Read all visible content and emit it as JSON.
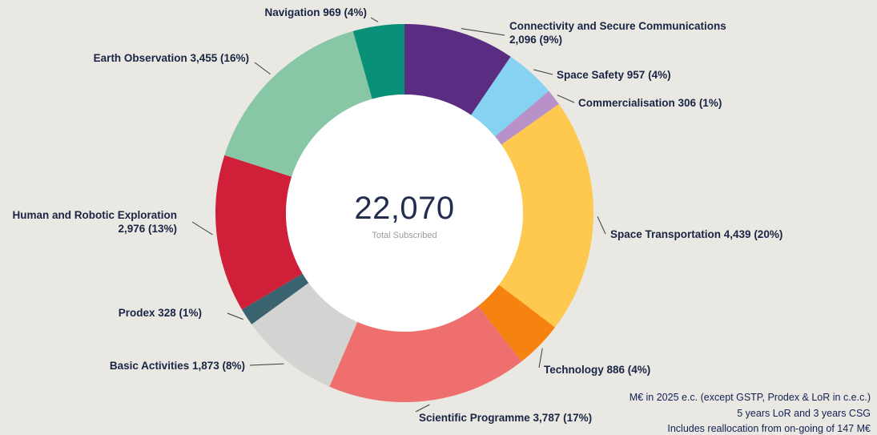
{
  "page": {
    "background": "#e9e8e2"
  },
  "chart_data": {
    "type": "pie",
    "subtype": "donut",
    "center_value": "22,070",
    "center_label": "Total Subscribed",
    "total": 22070,
    "legend_position": "outside-labels",
    "start_angle_deg": 0,
    "direction": "clockwise",
    "segments": [
      {
        "name": "Connectivity and Secure Communications",
        "value": 2096,
        "percent": 9,
        "color": "#5a2d82",
        "label_lines": [
          "Connectivity and Secure Communications",
          "2,096 (9%)"
        ]
      },
      {
        "name": "Space Safety",
        "value": 957,
        "percent": 4,
        "color": "#85d2f2",
        "label_lines": [
          "Space Safety 957 (4%)"
        ]
      },
      {
        "name": "Commercialisation",
        "value": 306,
        "percent": 1,
        "color": "#b791c8",
        "label_lines": [
          "Commercialisation 306 (1%)"
        ]
      },
      {
        "name": "Space Transportation",
        "value": 4439,
        "percent": 20,
        "color": "#ffc84f",
        "label_lines": [
          "Space Transportation 4,439 (20%)"
        ]
      },
      {
        "name": "Technology",
        "value": 886,
        "percent": 4,
        "color": "#f6830f",
        "label_lines": [
          "Technology 886 (4%)"
        ]
      },
      {
        "name": "Scientific Programme",
        "value": 3787,
        "percent": 17,
        "color": "#ee6f6e",
        "label_lines": [
          "Scientific Programme 3,787 (17%)"
        ]
      },
      {
        "name": "Basic Activities",
        "value": 1873,
        "percent": 8,
        "color": "#d3d3d1",
        "label_lines": [
          "Basic Activities 1,873 (8%)"
        ]
      },
      {
        "name": "Prodex",
        "value": 328,
        "percent": 1,
        "color": "#3a6370",
        "label_lines": [
          "Prodex 328 (1%)"
        ]
      },
      {
        "name": "Human and Robotic Exploration",
        "value": 2976,
        "percent": 13,
        "color": "#cf1f39",
        "label_lines": [
          "Human and Robotic Exploration",
          "2,976 (13%)"
        ]
      },
      {
        "name": "Earth Observation",
        "value": 3455,
        "percent": 16,
        "color": "#87c7a6",
        "label_lines": [
          "Earth Observation 3,455 (16%)"
        ]
      },
      {
        "name": "Navigation",
        "value": 969,
        "percent": 4,
        "color": "#089178",
        "label_lines": [
          "Navigation 969 (4%)"
        ]
      }
    ]
  },
  "footnotes": [
    "M€ in 2025 e.c. (except GSTP, Prodex & LoR in c.e.c.)",
    "5 years LoR and 3 years CSG",
    "Includes reallocation from on-going of 147 M€"
  ]
}
